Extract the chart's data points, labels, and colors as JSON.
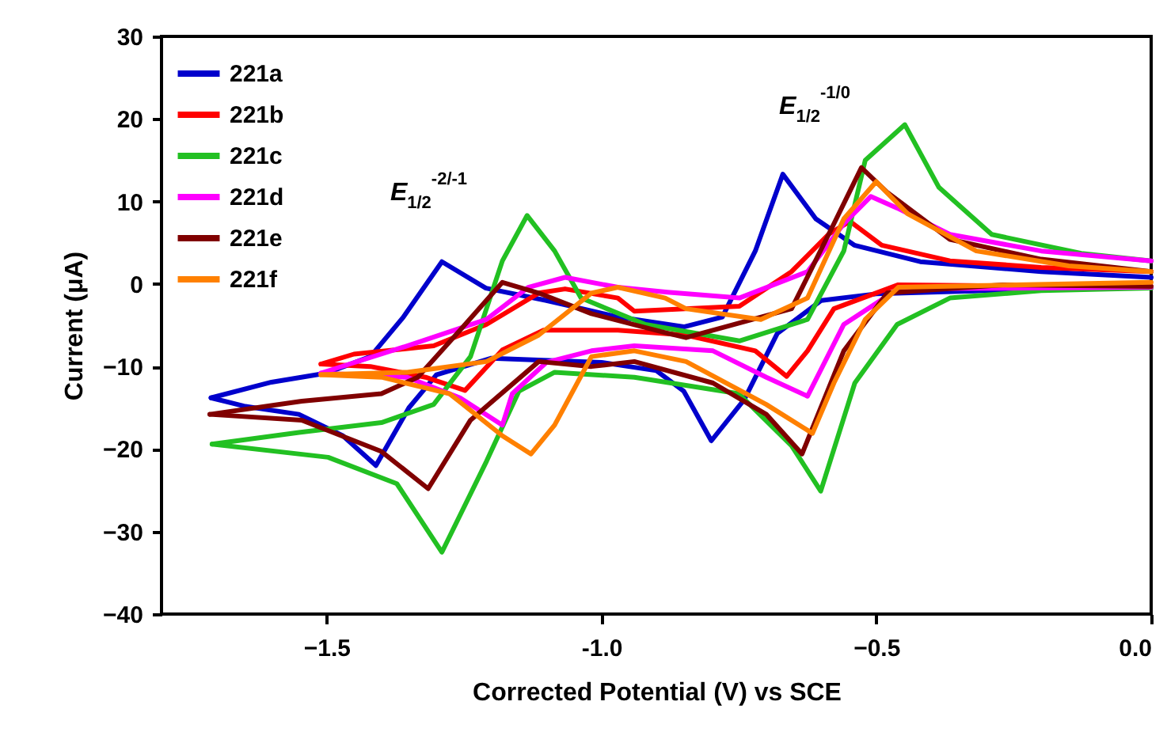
{
  "chart_data": {
    "type": "line",
    "xlabel": "Corrected Potential (V) vs SCE",
    "ylabel": "Current (μA)",
    "xlim": [
      -1.8,
      0
    ],
    "xticks": [
      -1.5,
      {
        "value": -1,
        "label": "-1.0"
      },
      -0.5,
      {
        "value": 0,
        "label": "0.0"
      }
    ],
    "ylim": [
      -40,
      30
    ],
    "yticks": [
      -40,
      -30,
      -20,
      -10,
      0,
      10,
      20,
      30
    ],
    "legend": "top left",
    "line_style": "solid",
    "annotations": [
      "E$_{1/2}$$^{-2/-1}$",
      "E$_{1/2}$$^{-1/0}$"
    ],
    "series": [
      {
        "name": "221a",
        "color": "#0000cc",
        "x": [
          0,
          -0.3,
          -0.5,
          -0.6,
          -0.68,
          -0.74,
          -0.8,
          -0.85,
          -0.9,
          -1.0,
          -1.2,
          -1.3,
          -1.35,
          -1.41,
          -1.47,
          -1.55,
          -1.65,
          -1.71
        ],
        "values": [
          -0.4,
          -0.8,
          -1.2,
          -2,
          -6,
          -14,
          -19,
          -13,
          -10.5,
          -9.5,
          -9,
          -11,
          -15,
          -22,
          -18.4,
          -15.8,
          -14.8,
          -13.8
        ]
      },
      {
        "color": "#0000cc",
        "x": [
          -1.71,
          -1.6,
          -1.5,
          -1.42,
          -1.36,
          -1.29,
          -1.21,
          -1.1,
          -0.97,
          -0.85,
          -0.78,
          -0.72,
          -0.67,
          -0.61,
          -0.54,
          -0.42,
          -0.2,
          0
        ],
        "values": [
          -13.8,
          -11.9,
          -10.8,
          -8.8,
          -4,
          2.7,
          -0.5,
          -2,
          -4,
          -5.2,
          -4,
          4,
          13.3,
          7.9,
          4.7,
          2.7,
          1.5,
          0.8
        ]
      },
      {
        "name": "221b",
        "color": "#ff0000",
        "x": [
          0,
          -0.3,
          -0.46,
          -0.577,
          -0.625,
          -0.663,
          -0.72,
          -0.846,
          -0.97,
          -1.105,
          -1.18,
          -1.248,
          -1.32,
          -1.42,
          -1.51
        ],
        "values": [
          -0.3,
          -0.2,
          -0.1,
          -3,
          -8.1,
          -11.2,
          -8.1,
          -6.2,
          -5.6,
          -5.6,
          -8,
          -12.9,
          -11.3,
          -10,
          -9.7
        ]
      },
      {
        "color": "#ff0000",
        "x": [
          -1.51,
          -1.45,
          -1.305,
          -1.209,
          -1.114,
          -1.066,
          -0.97,
          -0.94,
          -0.749,
          -0.654,
          -0.587,
          -0.548,
          -0.49,
          -0.366,
          -0.2,
          0
        ],
        "values": [
          -9.7,
          -8.5,
          -7.5,
          -4.9,
          -1.1,
          -0.6,
          -1.7,
          -3.3,
          -2.7,
          1.5,
          6,
          7.6,
          4.7,
          2.8,
          2,
          1.5
        ]
      },
      {
        "name": "221c",
        "color": "#22c022",
        "x": [
          0,
          -0.2,
          -0.366,
          -0.462,
          -0.539,
          -0.601,
          -0.654,
          -0.75,
          -0.94,
          -1.085,
          -1.15,
          -1.209,
          -1.29,
          -1.372,
          -1.497,
          -1.708
        ],
        "values": [
          -0.5,
          -0.8,
          -1.7,
          -4.9,
          -12,
          -25.1,
          -19.6,
          -13.3,
          -11.3,
          -10.7,
          -13,
          -21.5,
          -32.5,
          -24.2,
          -21,
          -19.4
        ]
      },
      {
        "color": "#22c022",
        "x": [
          -1.708,
          -1.55,
          -1.4,
          -1.305,
          -1.238,
          -1.18,
          -1.135,
          -1.085,
          -1.037,
          -0.92,
          -0.749,
          -0.625,
          -0.559,
          -0.52,
          -0.448,
          -0.386,
          -0.29,
          -0.127,
          0
        ],
        "values": [
          -19.4,
          -18,
          -16.8,
          -14.6,
          -8.8,
          2.8,
          8.3,
          4,
          -1.7,
          -4.9,
          -6.9,
          -4.3,
          4,
          15,
          19.3,
          11.7,
          6,
          3.7,
          2.8
        ]
      },
      {
        "name": "221d",
        "color": "#ff00ff",
        "x": [
          0,
          -0.46,
          -0.559,
          -0.625,
          -0.7,
          -0.797,
          -0.94,
          -1.018,
          -1.1,
          -1.162,
          -1.18,
          -1.257,
          -1.353,
          -1.51
        ],
        "values": [
          -0.4,
          -0.6,
          -4.9,
          -13.6,
          -11.3,
          -8.1,
          -7.5,
          -8.1,
          -9.5,
          -13.3,
          -17.1,
          -13.8,
          -11.3,
          -10.8
        ]
      },
      {
        "color": "#ff00ff",
        "x": [
          -1.51,
          -1.353,
          -1.209,
          -1.133,
          -1.066,
          -0.97,
          -0.88,
          -0.749,
          -0.625,
          -0.559,
          -0.51,
          -0.462,
          -0.366,
          -0.2,
          0
        ],
        "values": [
          -10.8,
          -7.5,
          -4.3,
          -0.4,
          0.8,
          -0.4,
          -1,
          -1.7,
          1.5,
          7.3,
          10.6,
          9.2,
          6,
          4,
          2.8
        ]
      },
      {
        "name": "221e",
        "color": "#800000",
        "x": [
          0,
          -0.27,
          -0.48,
          -0.559,
          -0.635,
          -0.7,
          -0.797,
          -0.94,
          -1.018,
          -1.114,
          -1.238,
          -1.315,
          -1.4,
          -1.545,
          -1.712
        ],
        "values": [
          -0.3,
          -0.1,
          -1.1,
          -8.1,
          -20.6,
          -15.8,
          -12,
          -9.4,
          -10,
          -9.4,
          -16.5,
          -24.8,
          -20.3,
          -16.5,
          -15.8
        ]
      },
      {
        "color": "#800000",
        "x": [
          -1.712,
          -1.545,
          -1.4,
          -1.334,
          -1.257,
          -1.18,
          -1.114,
          -1.018,
          -0.884,
          -0.846,
          -0.654,
          -0.577,
          -0.527,
          -0.48,
          -0.366,
          -0.2,
          0
        ],
        "values": [
          -15.8,
          -14.2,
          -13.3,
          -11.3,
          -5.6,
          0.2,
          -1.1,
          -3.6,
          -5.9,
          -6.5,
          -3,
          7.3,
          14.1,
          11.1,
          5.4,
          3,
          1.5
        ]
      },
      {
        "name": "221f",
        "color": "#ff8000",
        "x": [
          0,
          -0.46,
          -0.52,
          -0.577,
          -0.616,
          -0.7,
          -0.846,
          -0.94,
          -1.018,
          -1.085,
          -1.128,
          -1.18,
          -1.276,
          -1.4,
          -1.51
        ],
        "values": [
          0.2,
          -0.4,
          -4.3,
          -12,
          -18.1,
          -14.6,
          -9.4,
          -8.1,
          -8.8,
          -17.1,
          -20.6,
          -18.4,
          -13.3,
          -11.3,
          -11
        ]
      },
      {
        "color": "#ff8000",
        "x": [
          -1.51,
          -1.353,
          -1.209,
          -1.114,
          -1.018,
          -0.97,
          -0.884,
          -0.846,
          -0.71,
          -0.625,
          -0.559,
          -0.5,
          -0.443,
          -0.318,
          -0.15,
          0
        ],
        "values": [
          -11,
          -10.7,
          -9.4,
          -6.2,
          -1.1,
          -0.4,
          -1.7,
          -3,
          -4.3,
          -1.7,
          7.9,
          12.4,
          8.5,
          4,
          2.2,
          1.5
        ]
      }
    ]
  }
}
